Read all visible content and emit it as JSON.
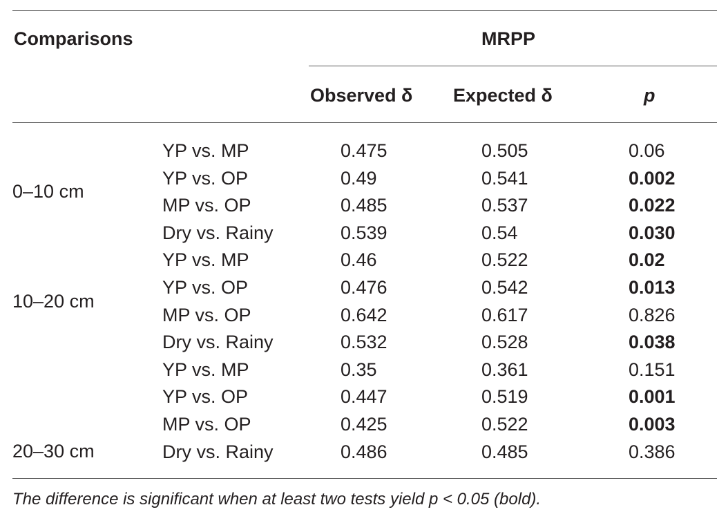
{
  "header": {
    "comparisons_label": "Comparisons",
    "group_label": "MRPP",
    "observed_label": "Observed δ",
    "expected_label": "Expected δ",
    "p_label": "p"
  },
  "depths": [
    {
      "label": "0–10 cm"
    },
    {
      "label": "10–20 cm"
    },
    {
      "label": "20–30 cm"
    }
  ],
  "rows": [
    {
      "comparison": "YP vs. MP",
      "observed": "0.475",
      "expected": "0.505",
      "p": "0.06",
      "significant": false
    },
    {
      "comparison": "YP vs. OP",
      "observed": "0.49",
      "expected": "0.541",
      "p": "0.002",
      "significant": true
    },
    {
      "comparison": "MP vs. OP",
      "observed": "0.485",
      "expected": "0.537",
      "p": "0.022",
      "significant": true
    },
    {
      "comparison": "Dry vs. Rainy",
      "observed": "0.539",
      "expected": "0.54",
      "p": "0.030",
      "significant": true
    },
    {
      "comparison": "YP vs. MP",
      "observed": "0.46",
      "expected": "0.522",
      "p": "0.02",
      "significant": true
    },
    {
      "comparison": "YP vs. OP",
      "observed": "0.476",
      "expected": "0.542",
      "p": "0.013",
      "significant": true
    },
    {
      "comparison": "MP vs. OP",
      "observed": "0.642",
      "expected": "0.617",
      "p": "0.826",
      "significant": false
    },
    {
      "comparison": "Dry vs. Rainy",
      "observed": "0.532",
      "expected": "0.528",
      "p": "0.038",
      "significant": true
    },
    {
      "comparison": "YP vs. MP",
      "observed": "0.35",
      "expected": "0.361",
      "p": "0.151",
      "significant": false
    },
    {
      "comparison": "YP vs. OP",
      "observed": "0.447",
      "expected": "0.519",
      "p": "0.001",
      "significant": true
    },
    {
      "comparison": "MP vs. OP",
      "observed": "0.425",
      "expected": "0.522",
      "p": "0.003",
      "significant": true
    },
    {
      "comparison": "Dry vs. Rainy",
      "observed": "0.486",
      "expected": "0.485",
      "p": "0.386",
      "significant": false
    }
  ],
  "footnote": "The difference is significant when at least two tests yield p < 0.05 (bold)."
}
